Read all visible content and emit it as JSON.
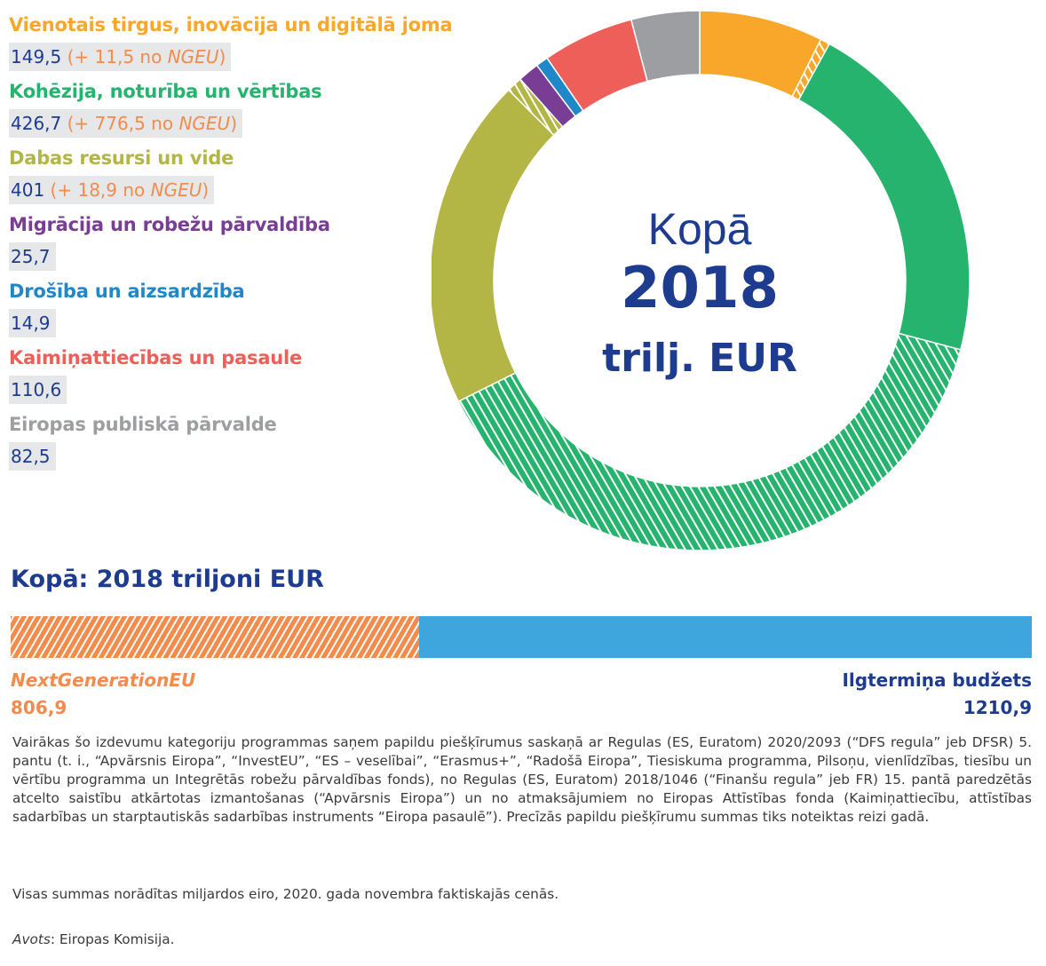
{
  "chart_data": {
    "type": "pie",
    "center": {
      "line1": "Kopā",
      "line2": "2018",
      "line3": "trilj. EUR"
    },
    "categories": [
      {
        "label": "Vienotais tirgus, inovācija un digitālā joma",
        "value": 149.5,
        "value_text": "149,5",
        "ngeu": 11.5,
        "ngeu_value_text": "11,5",
        "color": "#f9a72a"
      },
      {
        "label": "Kohēzija, noturība un vērtības",
        "value": 426.7,
        "value_text": "426,7",
        "ngeu": 776.5,
        "ngeu_value_text": "776,5",
        "color": "#26b36d"
      },
      {
        "label": "Dabas resursi un vide",
        "value": 401,
        "value_text": "401",
        "ngeu": 18.9,
        "ngeu_value_text": "18,9",
        "color": "#b3b544"
      },
      {
        "label": "Migrācija un robežu pārvaldība",
        "value": 25.7,
        "value_text": "25,7",
        "ngeu": 0,
        "color": "#7a3d96"
      },
      {
        "label": "Drošība un aizsardzība",
        "value": 14.9,
        "value_text": "14,9",
        "ngeu": 0,
        "color": "#1f88c8"
      },
      {
        "label": "Kaimiņattiecības un pasaule",
        "value": 110.6,
        "value_text": "110,6",
        "ngeu": 0,
        "color": "#ef5f5a"
      },
      {
        "label": "Eiropas publiskā pārvalde",
        "value": 82.5,
        "value_text": "82,5",
        "ngeu": 0,
        "color": "#9c9ea1"
      }
    ],
    "ngeu_parts": {
      "prefix": "(+ ",
      "suffix": " no ",
      "name": "NGEU",
      "close": ")"
    },
    "total_bar": {
      "title": "Kopā: 2018 triljoni EUR",
      "segments": [
        {
          "name": "NextGenerationEU",
          "value": 806.9,
          "value_text": "806,9",
          "color": "#f28b4c"
        },
        {
          "name": "Ilgtermiņa budžets",
          "value": 1210.9,
          "value_text": "1210,9",
          "color": "#3ea6dc"
        }
      ]
    }
  },
  "footnote": "Vairākas šo izdevumu kategoriju programmas saņem papildu piešķīrumus saskaņā ar Regulas (ES, Euratom) 2020/2093 (“DFS regula” jeb DFSR) 5. pantu (t. i., “Apvārsnis Eiropa”, “InvestEU”, “ES – veselībai”, “Erasmus+”, “Radošā Eiropa”, Tiesiskuma programma, Pilsoņu, vienlīdzības, tiesību un vērtību programma un Integrētās robežu pārvaldības fonds), no Regulas (ES, Euratom) 2018/1046 (“Finanšu regula” jeb FR) 15. pantā paredzētās atcelto saistību atkārtotas izmantošanas (“Apvārsnis Eiropa”) un no atmaksājumiem no Eiropas Attīstības fonda (Kaimiņattiecību, attīstības sadarbības un starptautiskās sadarbības instruments “Eiropa pasaulē”). Precīzās papildu piešķīrumu summas tiks noteiktas reizi gadā.",
  "note": "Visas summas norādītas miljardos eiro, 2020. gada novembra faktiskajās cenās.",
  "source": {
    "label": "Avots",
    "text": ": Eiropas Komisija."
  },
  "colors": {
    "navy": "#1d3b8f",
    "ngeu_orange": "#f28b4c",
    "box_grey": "#e6e7e8"
  }
}
